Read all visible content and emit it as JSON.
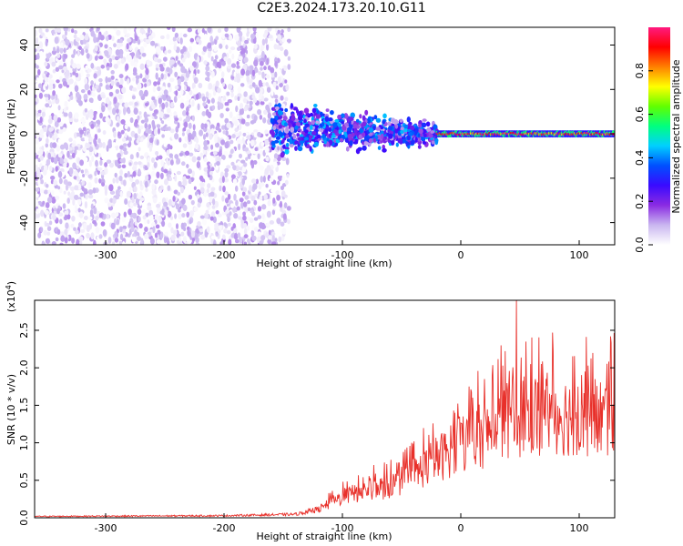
{
  "chart_data": [
    {
      "type": "heatmap",
      "title": "C2E3.2024.173.20.10.G11",
      "xlabel": "Height of straight line (km)",
      "ylabel": "Frequency (Hz)",
      "xlim": [
        -360,
        130
      ],
      "ylim": [
        -50,
        48
      ],
      "x_ticks": [
        -300,
        -200,
        -100,
        0,
        100
      ],
      "y_ticks": [
        -40,
        -20,
        0,
        20,
        40
      ],
      "colorbar": {
        "label": "Normalized spectral amplitude",
        "range": [
          0.0,
          1.0
        ],
        "ticks": [
          0.0,
          0.2,
          0.4,
          0.6,
          0.8
        ],
        "colormap": [
          "#ffffff",
          "#c9b6f0",
          "#8a2be2",
          "#3a0aff",
          "#0050ff",
          "#00d0ff",
          "#00ff80",
          "#60ff00",
          "#ffff00",
          "#ff8000",
          "#ff0000",
          "#ff1a80"
        ]
      },
      "regions": [
        {
          "name": "noise",
          "x_range": [
            -360,
            -145
          ],
          "y_range": [
            -50,
            48
          ],
          "amplitude_range": [
            0.0,
            0.12
          ]
        },
        {
          "name": "spread-signal",
          "x_range": [
            -160,
            -20
          ],
          "center_hz": 3,
          "spread_hz": 8,
          "amplitude_range": [
            0.1,
            0.45
          ]
        },
        {
          "name": "narrow-line",
          "x_range": [
            -20,
            130
          ],
          "center_hz": 0,
          "spread_hz": 1.5,
          "amplitude_range": [
            0.75,
            1.0
          ]
        }
      ],
      "grid": false
    },
    {
      "type": "line",
      "title": "",
      "xlabel": "Height of straight line (km)",
      "ylabel": "SNR (10 * v/v)",
      "y_multiplier": "(x10^4)",
      "xlim": [
        -360,
        130
      ],
      "ylim": [
        0,
        2.9
      ],
      "x_ticks": [
        -300,
        -200,
        -100,
        0,
        100
      ],
      "y_ticks": [
        0.0,
        0.5,
        1.0,
        1.5,
        2.0,
        2.5
      ],
      "series_color": "#e8302a",
      "x_step": 0.5,
      "envelope": [
        {
          "x": -360,
          "y": 0.02
        },
        {
          "x": -200,
          "y": 0.03
        },
        {
          "x": -140,
          "y": 0.05
        },
        {
          "x": -120,
          "y": 0.12
        },
        {
          "x": -100,
          "y": 0.3
        },
        {
          "x": -80,
          "y": 0.4
        },
        {
          "x": -60,
          "y": 0.45
        },
        {
          "x": -40,
          "y": 0.62
        },
        {
          "x": -20,
          "y": 0.85
        },
        {
          "x": 0,
          "y": 1.05
        },
        {
          "x": 20,
          "y": 1.2
        },
        {
          "x": 40,
          "y": 1.4
        },
        {
          "x": 60,
          "y": 1.5
        },
        {
          "x": 80,
          "y": 1.5
        },
        {
          "x": 100,
          "y": 1.45
        },
        {
          "x": 130,
          "y": 1.45
        }
      ],
      "peaks": [
        {
          "x": 47,
          "y": 2.9
        },
        {
          "x": 34,
          "y": 2.3
        },
        {
          "x": 55,
          "y": 2.35
        },
        {
          "x": 68,
          "y": 2.05
        },
        {
          "x": 7,
          "y": 1.75
        },
        {
          "x": 20,
          "y": 1.85
        },
        {
          "x": 105,
          "y": 1.95
        },
        {
          "x": -5,
          "y": 1.4
        }
      ],
      "grid": false
    }
  ]
}
